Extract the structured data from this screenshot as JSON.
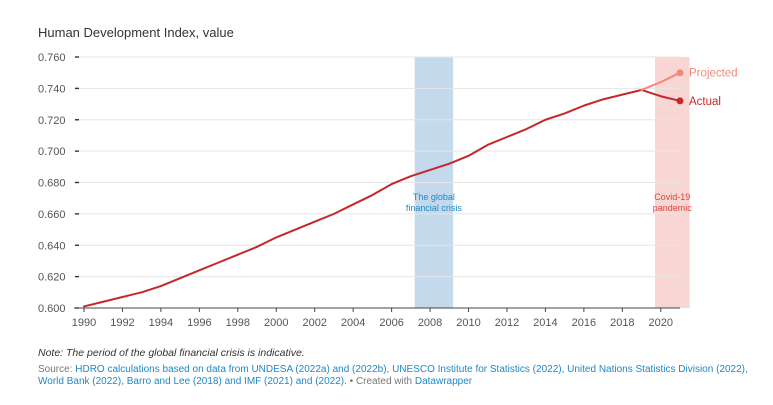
{
  "chart_data": {
    "type": "line",
    "ylabel": "Human Development Index, value",
    "ylim": [
      0.6,
      0.76
    ],
    "yticks": [
      "0.760",
      "0.740",
      "0.720",
      "0.700",
      "0.680",
      "0.660",
      "0.640",
      "0.620",
      "0.600"
    ],
    "xlim": [
      1990,
      2021
    ],
    "xticks": [
      "1990",
      "1992",
      "1994",
      "1996",
      "1998",
      "2000",
      "2002",
      "2004",
      "2006",
      "2008",
      "2010",
      "2012",
      "2014",
      "2016",
      "2018",
      "2020"
    ],
    "series": [
      {
        "name": "Actual",
        "color": "#c4282b",
        "points": [
          [
            1990,
            0.601
          ],
          [
            1991,
            0.604
          ],
          [
            1992,
            0.607
          ],
          [
            1993,
            0.61
          ],
          [
            1994,
            0.614
          ],
          [
            1995,
            0.619
          ],
          [
            1996,
            0.624
          ],
          [
            1997,
            0.629
          ],
          [
            1998,
            0.634
          ],
          [
            1999,
            0.639
          ],
          [
            2000,
            0.645
          ],
          [
            2001,
            0.65
          ],
          [
            2002,
            0.655
          ],
          [
            2003,
            0.66
          ],
          [
            2004,
            0.666
          ],
          [
            2005,
            0.672
          ],
          [
            2006,
            0.679
          ],
          [
            2007,
            0.684
          ],
          [
            2008,
            0.688
          ],
          [
            2009,
            0.692
          ],
          [
            2010,
            0.697
          ],
          [
            2011,
            0.704
          ],
          [
            2012,
            0.709
          ],
          [
            2013,
            0.714
          ],
          [
            2014,
            0.72
          ],
          [
            2015,
            0.724
          ],
          [
            2016,
            0.729
          ],
          [
            2017,
            0.733
          ],
          [
            2018,
            0.736
          ],
          [
            2019,
            0.739
          ],
          [
            2020,
            0.735
          ],
          [
            2021,
            0.732
          ]
        ]
      },
      {
        "name": "Projected",
        "color": "#f4877a",
        "points": [
          [
            2019,
            0.739
          ],
          [
            2020,
            0.744
          ],
          [
            2021,
            0.75
          ]
        ]
      }
    ],
    "bands": [
      {
        "from": 2007.2,
        "to": 2009.2,
        "color": "#c5d9ec",
        "label_lines": [
          "The global",
          "financial crisis"
        ],
        "label_color": "#1e88c7"
      },
      {
        "from": 2019.7,
        "to": 2021.5,
        "color": "#f8d6d3",
        "label_lines": [
          "Covid-19",
          "pandemic"
        ],
        "label_color": "#d8463e"
      }
    ]
  },
  "footer": {
    "note": "Note: The period of the global financial crisis is indicative.",
    "source_prefix": "Source: ",
    "source_link": "HDRO calculations based on data from UNDESA (2022a) and (2022b), UNESCO Institute for Statistics (2022), United Nations Statistics Division (2022), World Bank (2022), Barro and Lee (2018) and IMF (2021) and (2022).",
    "created_with": " • Created with ",
    "tool": "Datawrapper"
  }
}
